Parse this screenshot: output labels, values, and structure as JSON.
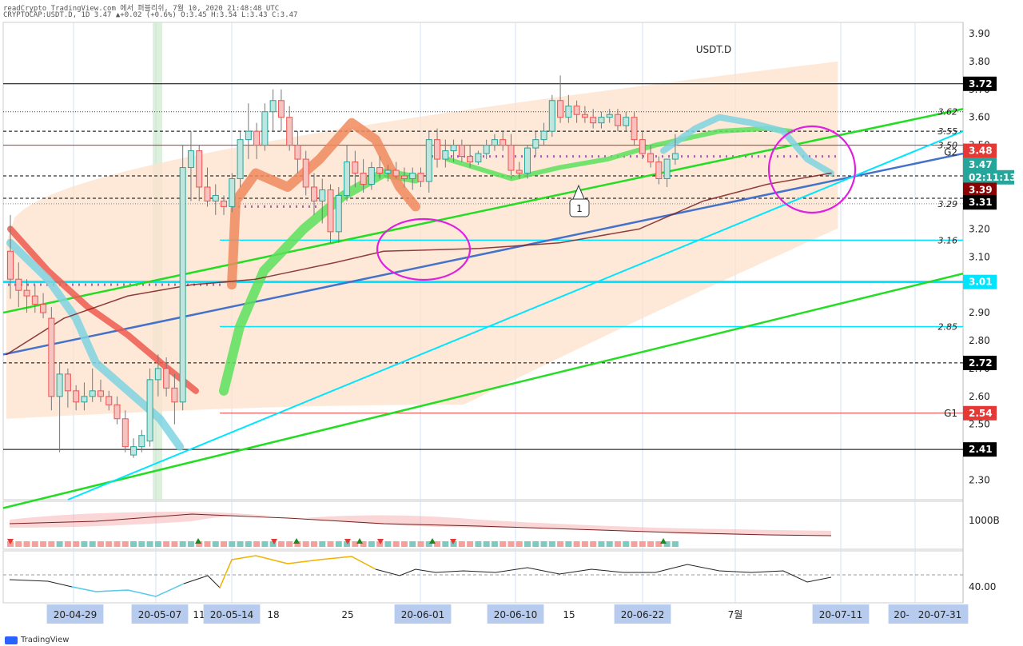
{
  "header": {
    "line1": "readCrypto TradingView.com 에서 퍼블리쉬, 7월 10, 2020 21:48:48 UTC",
    "line2": "CRYPTOCAP:USDT.D, 1D 3.47 ▲+0.02 (+0.6%) O:3.45 H:3.54 L:3.43 C:3.47"
  },
  "chart_data": {
    "type": "candlestick",
    "title": "USDT.D",
    "price_axis": {
      "ticks": [
        "3.90",
        "3.80",
        "3.70",
        "3.60",
        "3.50",
        "3.40",
        "3.30",
        "3.20",
        "3.10",
        "3.00",
        "2.90",
        "2.80",
        "2.70",
        "2.60",
        "2.50",
        "2.40",
        "2.30"
      ],
      "ylim": [
        2.23,
        3.94
      ]
    },
    "level_labels": [
      "3.62",
      "3.55",
      "3.50",
      "3.29",
      "3.16",
      "2.85"
    ],
    "level_codes": [
      "G2",
      "G1"
    ],
    "price_tags": [
      {
        "value": "3.72",
        "color": "#000000"
      },
      {
        "value": "3.48",
        "color": "#e53935"
      },
      {
        "value": "3.47",
        "color": "#26a69a"
      },
      {
        "value": "02:11:13",
        "color": "#26a69a"
      },
      {
        "value": "3.39",
        "color": "#8b0000"
      },
      {
        "value": "3.31",
        "color": "#000000"
      },
      {
        "value": "3.01",
        "color": "#00e5ff"
      },
      {
        "value": "2.72",
        "color": "#000000"
      },
      {
        "value": "2.54",
        "color": "#e53935"
      },
      {
        "value": "2.41",
        "color": "#000000"
      }
    ],
    "date_labels": [
      "20-04-29",
      "20-05-07",
      "11",
      "20-05-14",
      "18",
      "25",
      "20-06-01",
      "20-06-10",
      "15",
      "20-06-22",
      "7월",
      "20-07-11",
      "20-",
      "20-07-31"
    ],
    "annotation": "1",
    "candles": [
      {
        "o": 3.12,
        "h": 3.25,
        "l": 2.95,
        "c": 3.02
      },
      {
        "o": 3.02,
        "h": 3.08,
        "l": 2.92,
        "c": 2.98
      },
      {
        "o": 2.98,
        "h": 3.02,
        "l": 2.9,
        "c": 2.96
      },
      {
        "o": 2.96,
        "h": 3.0,
        "l": 2.9,
        "c": 2.93
      },
      {
        "o": 2.93,
        "h": 2.97,
        "l": 2.88,
        "c": 2.9
      },
      {
        "o": 2.88,
        "h": 2.92,
        "l": 2.55,
        "c": 2.6
      },
      {
        "o": 2.6,
        "h": 2.72,
        "l": 2.4,
        "c": 2.68
      },
      {
        "o": 2.68,
        "h": 2.7,
        "l": 2.56,
        "c": 2.62
      },
      {
        "o": 2.62,
        "h": 2.64,
        "l": 2.55,
        "c": 2.58
      },
      {
        "o": 2.58,
        "h": 2.65,
        "l": 2.55,
        "c": 2.6
      },
      {
        "o": 2.6,
        "h": 2.7,
        "l": 2.58,
        "c": 2.62
      },
      {
        "o": 2.62,
        "h": 2.66,
        "l": 2.58,
        "c": 2.6
      },
      {
        "o": 2.6,
        "h": 2.62,
        "l": 2.55,
        "c": 2.57
      },
      {
        "o": 2.57,
        "h": 2.6,
        "l": 2.5,
        "c": 2.52
      },
      {
        "o": 2.52,
        "h": 2.55,
        "l": 2.4,
        "c": 2.42
      },
      {
        "o": 2.39,
        "h": 2.45,
        "l": 2.38,
        "c": 2.42
      },
      {
        "o": 2.42,
        "h": 2.48,
        "l": 2.4,
        "c": 2.46
      },
      {
        "o": 2.44,
        "h": 2.7,
        "l": 2.42,
        "c": 2.66
      },
      {
        "o": 2.66,
        "h": 2.75,
        "l": 2.6,
        "c": 2.7
      },
      {
        "o": 2.7,
        "h": 2.74,
        "l": 2.6,
        "c": 2.63
      },
      {
        "o": 2.63,
        "h": 2.68,
        "l": 2.5,
        "c": 2.58
      },
      {
        "o": 2.58,
        "h": 3.5,
        "l": 2.55,
        "c": 3.42
      },
      {
        "o": 3.42,
        "h": 3.55,
        "l": 3.3,
        "c": 3.48
      },
      {
        "o": 3.48,
        "h": 3.5,
        "l": 3.3,
        "c": 3.35
      },
      {
        "o": 3.35,
        "h": 3.42,
        "l": 3.28,
        "c": 3.3
      },
      {
        "o": 3.3,
        "h": 3.36,
        "l": 3.25,
        "c": 3.32
      },
      {
        "o": 3.3,
        "h": 3.32,
        "l": 3.25,
        "c": 3.28
      },
      {
        "o": 3.28,
        "h": 3.4,
        "l": 3.26,
        "c": 3.38
      },
      {
        "o": 3.38,
        "h": 3.55,
        "l": 3.35,
        "c": 3.52
      },
      {
        "o": 3.52,
        "h": 3.65,
        "l": 3.45,
        "c": 3.55
      },
      {
        "o": 3.55,
        "h": 3.58,
        "l": 3.45,
        "c": 3.5
      },
      {
        "o": 3.5,
        "h": 3.65,
        "l": 3.48,
        "c": 3.62
      },
      {
        "o": 3.62,
        "h": 3.7,
        "l": 3.55,
        "c": 3.66
      },
      {
        "o": 3.66,
        "h": 3.7,
        "l": 3.55,
        "c": 3.6
      },
      {
        "o": 3.6,
        "h": 3.64,
        "l": 3.48,
        "c": 3.5
      },
      {
        "o": 3.5,
        "h": 3.55,
        "l": 3.4,
        "c": 3.45
      },
      {
        "o": 3.45,
        "h": 3.48,
        "l": 3.32,
        "c": 3.35
      },
      {
        "o": 3.35,
        "h": 3.4,
        "l": 3.25,
        "c": 3.3
      },
      {
        "o": 3.3,
        "h": 3.38,
        "l": 3.22,
        "c": 3.34
      },
      {
        "o": 3.34,
        "h": 3.36,
        "l": 3.15,
        "c": 3.19
      },
      {
        "o": 3.19,
        "h": 3.35,
        "l": 3.15,
        "c": 3.32
      },
      {
        "o": 3.32,
        "h": 3.5,
        "l": 3.3,
        "c": 3.44
      },
      {
        "o": 3.44,
        "h": 3.48,
        "l": 3.35,
        "c": 3.4
      },
      {
        "o": 3.4,
        "h": 3.45,
        "l": 3.33,
        "c": 3.36
      },
      {
        "o": 3.36,
        "h": 3.44,
        "l": 3.34,
        "c": 3.42
      },
      {
        "o": 3.42,
        "h": 3.46,
        "l": 3.38,
        "c": 3.4
      },
      {
        "o": 3.4,
        "h": 3.43,
        "l": 3.37,
        "c": 3.41
      },
      {
        "o": 3.41,
        "h": 3.44,
        "l": 3.38,
        "c": 3.39
      },
      {
        "o": 3.39,
        "h": 3.42,
        "l": 3.35,
        "c": 3.38
      },
      {
        "o": 3.38,
        "h": 3.42,
        "l": 3.34,
        "c": 3.4
      },
      {
        "o": 3.4,
        "h": 3.42,
        "l": 3.35,
        "c": 3.37
      },
      {
        "o": 3.37,
        "h": 3.55,
        "l": 3.33,
        "c": 3.52
      },
      {
        "o": 3.52,
        "h": 3.56,
        "l": 3.42,
        "c": 3.45
      },
      {
        "o": 3.45,
        "h": 3.52,
        "l": 3.42,
        "c": 3.48
      },
      {
        "o": 3.48,
        "h": 3.52,
        "l": 3.44,
        "c": 3.5
      },
      {
        "o": 3.5,
        "h": 3.52,
        "l": 3.44,
        "c": 3.46
      },
      {
        "o": 3.46,
        "h": 3.5,
        "l": 3.42,
        "c": 3.44
      },
      {
        "o": 3.44,
        "h": 3.48,
        "l": 3.43,
        "c": 3.47
      },
      {
        "o": 3.47,
        "h": 3.52,
        "l": 3.45,
        "c": 3.5
      },
      {
        "o": 3.5,
        "h": 3.54,
        "l": 3.48,
        "c": 3.52
      },
      {
        "o": 3.52,
        "h": 3.55,
        "l": 3.48,
        "c": 3.5
      },
      {
        "o": 3.5,
        "h": 3.54,
        "l": 3.38,
        "c": 3.41
      },
      {
        "o": 3.41,
        "h": 3.44,
        "l": 3.38,
        "c": 3.4
      },
      {
        "o": 3.4,
        "h": 3.5,
        "l": 3.38,
        "c": 3.49
      },
      {
        "o": 3.49,
        "h": 3.55,
        "l": 3.46,
        "c": 3.52
      },
      {
        "o": 3.52,
        "h": 3.58,
        "l": 3.5,
        "c": 3.55
      },
      {
        "o": 3.55,
        "h": 3.68,
        "l": 3.53,
        "c": 3.66
      },
      {
        "o": 3.66,
        "h": 3.75,
        "l": 3.58,
        "c": 3.6
      },
      {
        "o": 3.6,
        "h": 3.68,
        "l": 3.58,
        "c": 3.64
      },
      {
        "o": 3.64,
        "h": 3.66,
        "l": 3.58,
        "c": 3.61
      },
      {
        "o": 3.61,
        "h": 3.64,
        "l": 3.58,
        "c": 3.6
      },
      {
        "o": 3.6,
        "h": 3.63,
        "l": 3.56,
        "c": 3.58
      },
      {
        "o": 3.58,
        "h": 3.62,
        "l": 3.56,
        "c": 3.6
      },
      {
        "o": 3.6,
        "h": 3.63,
        "l": 3.58,
        "c": 3.61
      },
      {
        "o": 3.61,
        "h": 3.63,
        "l": 3.55,
        "c": 3.57
      },
      {
        "o": 3.57,
        "h": 3.62,
        "l": 3.55,
        "c": 3.6
      },
      {
        "o": 3.6,
        "h": 3.62,
        "l": 3.5,
        "c": 3.52
      },
      {
        "o": 3.52,
        "h": 3.55,
        "l": 3.45,
        "c": 3.47
      },
      {
        "o": 3.47,
        "h": 3.5,
        "l": 3.42,
        "c": 3.44
      },
      {
        "o": 3.44,
        "h": 3.46,
        "l": 3.36,
        "c": 3.38
      },
      {
        "o": 3.38,
        "h": 3.45,
        "l": 3.35,
        "c": 3.45
      },
      {
        "o": 3.45,
        "h": 3.54,
        "l": 3.43,
        "c": 3.47
      }
    ],
    "lower_pane1_label": "1000B",
    "lower_pane2_label": "40.00",
    "colors": {
      "up": "#26a69a",
      "down": "#ef5350",
      "green_line": "#22dd22",
      "blue_line": "#4472ca",
      "cyan_line": "#00e5ff",
      "magenta": "#e020e0",
      "cloud": "#fde2cc"
    }
  },
  "footer": {
    "brand": "TradingView"
  }
}
